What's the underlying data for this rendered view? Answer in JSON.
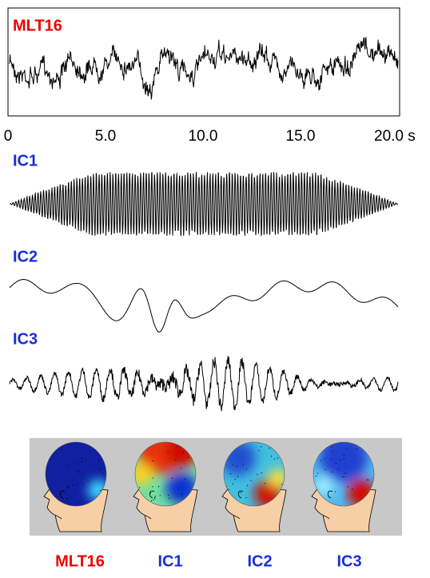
{
  "signal_panel": {
    "label": "MLT16",
    "time_axis": {
      "ticks": [
        "0",
        "5.0",
        "10.0",
        "15.0",
        "20.0 s"
      ]
    }
  },
  "components": [
    {
      "label": "IC1"
    },
    {
      "label": "IC2"
    },
    {
      "label": "IC3"
    }
  ],
  "topomaps": [
    {
      "label": "MLT16"
    },
    {
      "label": "IC1"
    },
    {
      "label": "IC2"
    },
    {
      "label": "IC3"
    }
  ]
}
